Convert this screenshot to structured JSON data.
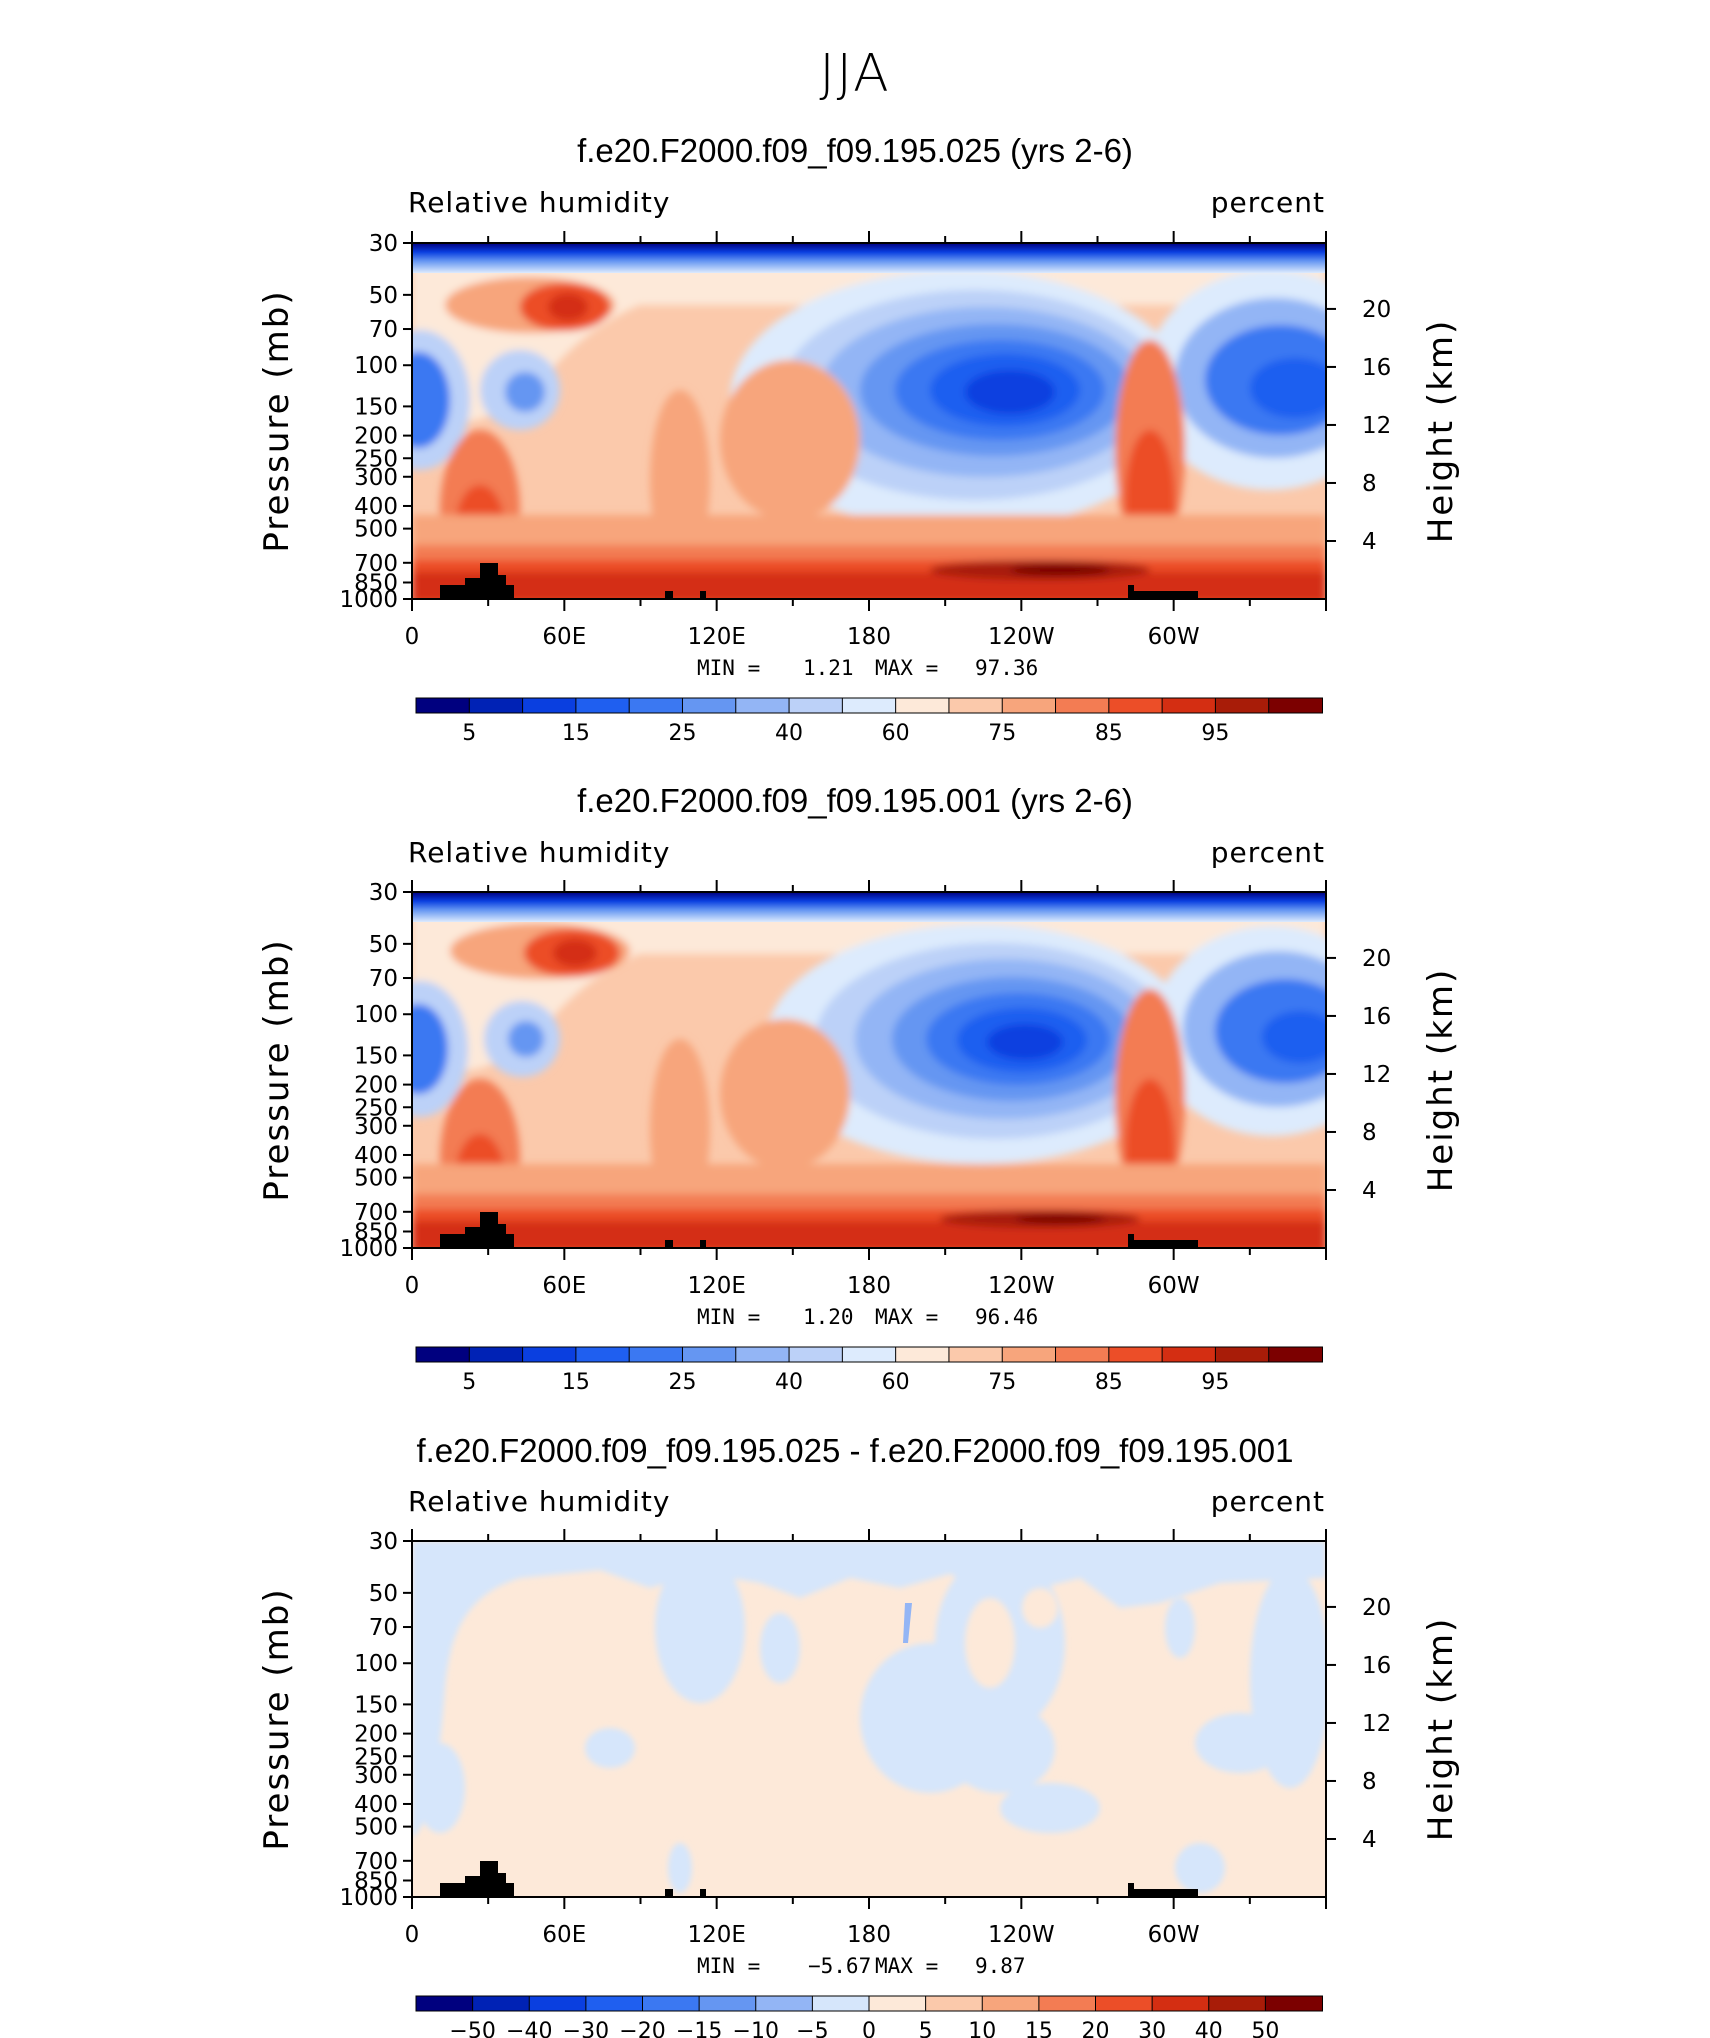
{
  "figure": {
    "title": "JJA",
    "min_label": "MIN =",
    "max_label": "MAX =",
    "variable_label": "Relative humidity",
    "units_label": "percent",
    "left_axis_label": "Pressure (mb)",
    "right_axis_label": "Height (km)"
  },
  "chart_data": [
    {
      "type": "heatmap",
      "title": "f.e20.F2000.f09_f09.195.025 (yrs 2-6)",
      "variable": "Relative humidity",
      "units": "percent",
      "ylabel": "Pressure (mb)",
      "ylabel_right": "Height (km)",
      "x_ticks": [
        "0",
        "60E",
        "120E",
        "180",
        "120W",
        "60W"
      ],
      "x_range_deg": [
        0,
        360
      ],
      "y_ticks": [
        "30",
        "50",
        "70",
        "100",
        "150",
        "200",
        "250",
        "300",
        "400",
        "500",
        "700",
        "850",
        "1000"
      ],
      "y_range_mb": [
        30,
        1000
      ],
      "y_scale": "log",
      "right_ticks": [
        "20",
        "16",
        "12",
        "8",
        "4"
      ],
      "min": "1.21",
      "max": "97.36",
      "colorbar_labels": [
        "5",
        "15",
        "25",
        "40",
        "60",
        "75",
        "85",
        "95"
      ],
      "colorbar_levels": [
        5,
        10,
        15,
        20,
        25,
        30,
        40,
        50,
        60,
        70,
        75,
        80,
        85,
        90,
        95
      ],
      "colorbar_colors": [
        "#00007f",
        "#0022b5",
        "#0a3fe0",
        "#1f5ff0",
        "#3b78f2",
        "#6596f2",
        "#93b5f5",
        "#bcd1f8",
        "#ddebfd",
        "#fde9d9",
        "#fbc9ab",
        "#f7a57c",
        "#f37c53",
        "#ec4e28",
        "#d42e12",
        "#a81c08",
        "#7c0000"
      ]
    },
    {
      "type": "heatmap",
      "title": "f.e20.F2000.f09_f09.195.001 (yrs 2-6)",
      "variable": "Relative humidity",
      "units": "percent",
      "ylabel": "Pressure (mb)",
      "ylabel_right": "Height (km)",
      "x_ticks": [
        "0",
        "60E",
        "120E",
        "180",
        "120W",
        "60W"
      ],
      "x_range_deg": [
        0,
        360
      ],
      "y_ticks": [
        "30",
        "50",
        "70",
        "100",
        "150",
        "200",
        "250",
        "300",
        "400",
        "500",
        "700",
        "850",
        "1000"
      ],
      "y_range_mb": [
        30,
        1000
      ],
      "y_scale": "log",
      "right_ticks": [
        "20",
        "16",
        "12",
        "8",
        "4"
      ],
      "min": "1.20",
      "max": "96.46",
      "colorbar_labels": [
        "5",
        "15",
        "25",
        "40",
        "60",
        "75",
        "85",
        "95"
      ],
      "colorbar_levels": [
        5,
        10,
        15,
        20,
        25,
        30,
        40,
        50,
        60,
        70,
        75,
        80,
        85,
        90,
        95
      ],
      "colorbar_colors": [
        "#00007f",
        "#0022b5",
        "#0a3fe0",
        "#1f5ff0",
        "#3b78f2",
        "#6596f2",
        "#93b5f5",
        "#bcd1f8",
        "#ddebfd",
        "#fde9d9",
        "#fbc9ab",
        "#f7a57c",
        "#f37c53",
        "#ec4e28",
        "#d42e12",
        "#a81c08",
        "#7c0000"
      ]
    },
    {
      "type": "heatmap",
      "title": "f.e20.F2000.f09_f09.195.025 - f.e20.F2000.f09_f09.195.001",
      "variable": "Relative humidity",
      "units": "percent",
      "ylabel": "Pressure (mb)",
      "ylabel_right": "Height (km)",
      "x_ticks": [
        "0",
        "60E",
        "120E",
        "180",
        "120W",
        "60W"
      ],
      "x_range_deg": [
        0,
        360
      ],
      "y_ticks": [
        "30",
        "50",
        "70",
        "100",
        "150",
        "200",
        "250",
        "300",
        "400",
        "500",
        "700",
        "850",
        "1000"
      ],
      "y_range_mb": [
        30,
        1000
      ],
      "y_scale": "log",
      "right_ticks": [
        "20",
        "16",
        "12",
        "8",
        "4"
      ],
      "min": "−5.67",
      "max": "9.87",
      "colorbar_labels": [
        "−50",
        "−40",
        "−30",
        "−20",
        "−15",
        "−10",
        "−5",
        "0",
        "5",
        "10",
        "15",
        "20",
        "30",
        "40",
        "50"
      ],
      "colorbar_levels": [
        -50,
        -40,
        -30,
        -20,
        -15,
        -10,
        -5,
        0,
        5,
        10,
        15,
        20,
        30,
        40,
        50
      ],
      "colorbar_colors": [
        "#00007f",
        "#0022b5",
        "#0a3fe0",
        "#1f5ff0",
        "#3b78f2",
        "#6596f2",
        "#93b5f5",
        "#d6e6fb",
        "#fde9d9",
        "#fbc9ab",
        "#f7a57c",
        "#f37c53",
        "#ec4e28",
        "#d42e12",
        "#a81c08",
        "#7c0000"
      ]
    }
  ]
}
